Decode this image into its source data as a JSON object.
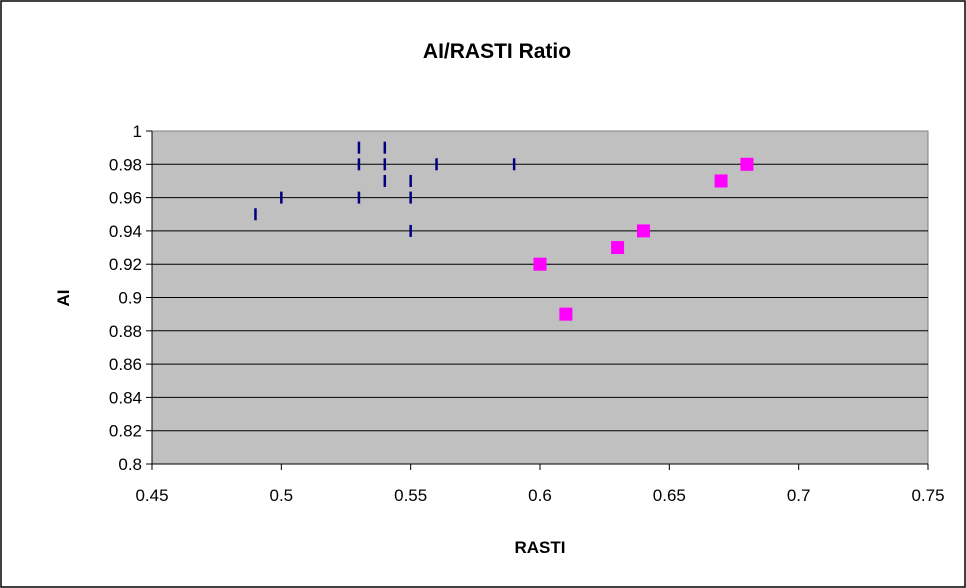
{
  "chart_data": {
    "type": "scatter",
    "title": "AI/RASTI   Ratio",
    "xlabel": "RASTI",
    "ylabel": "AI",
    "xlim": [
      0.45,
      0.75
    ],
    "ylim": [
      0.8,
      1.0
    ],
    "x_ticks": [
      "0.45",
      "0.5",
      "0.55",
      "0.6",
      "0.65",
      "0.7",
      "0.75"
    ],
    "y_ticks": [
      "0.8",
      "0.82",
      "0.84",
      "0.86",
      "0.88",
      "0.9",
      "0.92",
      "0.94",
      "0.96",
      "0.98",
      "1"
    ],
    "grid": "horizontal",
    "plot_background": "#c0c0c0",
    "legend": "none",
    "series": [
      {
        "marker": "vertical-dash",
        "color": "#000080",
        "points": [
          {
            "x": 0.49,
            "y": 0.95
          },
          {
            "x": 0.5,
            "y": 0.96
          },
          {
            "x": 0.53,
            "y": 0.99
          },
          {
            "x": 0.53,
            "y": 0.98
          },
          {
            "x": 0.53,
            "y": 0.96
          },
          {
            "x": 0.54,
            "y": 0.99
          },
          {
            "x": 0.54,
            "y": 0.98
          },
          {
            "x": 0.54,
            "y": 0.97
          },
          {
            "x": 0.55,
            "y": 0.97
          },
          {
            "x": 0.55,
            "y": 0.96
          },
          {
            "x": 0.55,
            "y": 0.94
          },
          {
            "x": 0.56,
            "y": 0.98
          },
          {
            "x": 0.59,
            "y": 0.98
          }
        ]
      },
      {
        "marker": "square",
        "color": "#ff00ff",
        "points": [
          {
            "x": 0.6,
            "y": 0.92
          },
          {
            "x": 0.61,
            "y": 0.89
          },
          {
            "x": 0.63,
            "y": 0.93
          },
          {
            "x": 0.64,
            "y": 0.94
          },
          {
            "x": 0.67,
            "y": 0.97
          },
          {
            "x": 0.68,
            "y": 0.98
          }
        ]
      }
    ]
  }
}
